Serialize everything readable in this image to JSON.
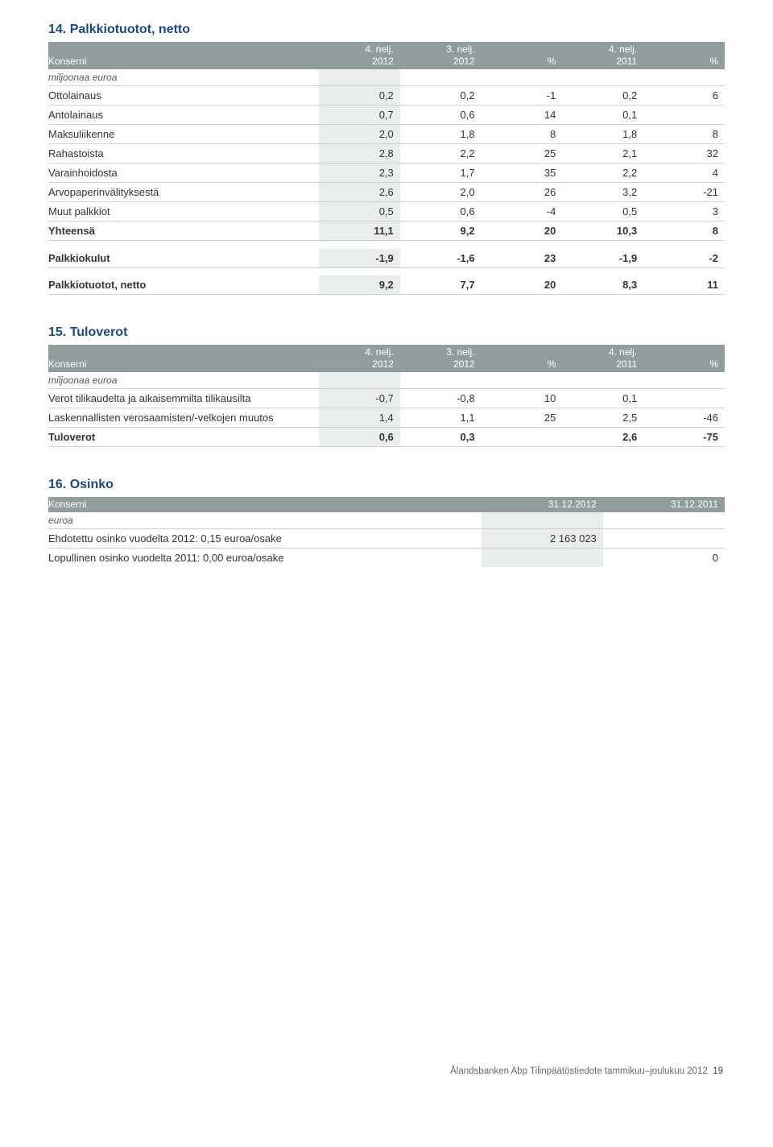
{
  "colors": {
    "heading": "#1d4a78",
    "header_row_bg": "#919d9d",
    "header_row_text": "#ffffff",
    "shade_bg": "#e9edec",
    "row_border": "#cfcfcf",
    "body_text": "#343434",
    "subhead_text": "#5a5a5a",
    "footer_text": "#6a6a6a"
  },
  "typography": {
    "body_fontsize_pt": 10,
    "heading_fontsize_pt": 12,
    "header_row_fontsize_pt": 9
  },
  "section14": {
    "title": "14. Palkkiotuotot, netto",
    "columns": {
      "c1": "Konserni",
      "c2a": "4. nelj.",
      "c2b": "2012",
      "c3a": "3. nelj.",
      "c3b": "2012",
      "c4": "%",
      "c5a": "4. nelj.",
      "c5b": "2011",
      "c6": "%"
    },
    "subheading": "miljoonaa euroa",
    "rows": [
      {
        "label": "Ottolainaus",
        "v": [
          "0,2",
          "0,2",
          "-1",
          "0,2",
          "6"
        ]
      },
      {
        "label": "Antolainaus",
        "v": [
          "0,7",
          "0,6",
          "14",
          "0,1",
          ""
        ]
      },
      {
        "label": "Maksuliikenne",
        "v": [
          "2,0",
          "1,8",
          "8",
          "1,8",
          "8"
        ]
      },
      {
        "label": "Rahastoista",
        "v": [
          "2,8",
          "2,2",
          "25",
          "2,1",
          "32"
        ]
      },
      {
        "label": "Varainhoidosta",
        "v": [
          "2,3",
          "1,7",
          "35",
          "2,2",
          "4"
        ]
      },
      {
        "label": "Arvopaperinvälityksestä",
        "v": [
          "2,6",
          "2,0",
          "26",
          "3,2",
          "-21"
        ]
      },
      {
        "label": "Muut palkkiot",
        "v": [
          "0,5",
          "0,6",
          "-4",
          "0,5",
          "3"
        ]
      }
    ],
    "subtotal": {
      "label": "Yhteensä",
      "v": [
        "11,1",
        "9,2",
        "20",
        "10,3",
        "8"
      ]
    },
    "expenses": {
      "label": "Palkkiokulut",
      "v": [
        "-1,9",
        "-1,6",
        "23",
        "-1,9",
        "-2"
      ]
    },
    "net": {
      "label": "Palkkiotuotot, netto",
      "v": [
        "9,2",
        "7,7",
        "20",
        "8,3",
        "11"
      ]
    }
  },
  "section15": {
    "title": "15. Tuloverot",
    "columns": {
      "c1": "Konserni",
      "c2a": "4. nelj.",
      "c2b": "2012",
      "c3a": "3. nelj.",
      "c3b": "2012",
      "c4": "%",
      "c5a": "4. nelj.",
      "c5b": "2011",
      "c6": "%"
    },
    "subheading": "miljoonaa euroa",
    "rows": [
      {
        "label": "Verot tilikaudelta ja aikaisemmilta tilikausilta",
        "v": [
          "-0,7",
          "-0,8",
          "10",
          "0,1",
          ""
        ]
      },
      {
        "label": "Laskennallisten verosaamisten/-velkojen muutos",
        "v": [
          "1,4",
          "1,1",
          "25",
          "2,5",
          "-46"
        ]
      }
    ],
    "total": {
      "label": "Tuloverot",
      "v": [
        "0,6",
        "0,3",
        "",
        "2,6",
        "-75"
      ]
    }
  },
  "section16": {
    "title": "16. Osinko",
    "columns": {
      "c1": "Konserni",
      "c2": "31.12.2012",
      "c3": "31.12.2011"
    },
    "subheading": "euroa",
    "rows": [
      {
        "label": "Ehdotettu osinko vuodelta 2012: 0,15 euroa/osake",
        "v": [
          "2 163 023",
          ""
        ]
      },
      {
        "label": "Lopullinen osinko vuodelta 2011: 0,00 euroa/osake",
        "v": [
          "",
          "0"
        ]
      }
    ]
  },
  "footer": {
    "text": "Ålandsbanken Abp  Tilinpäätöstiedote  tammikuu–joulukuu 2012",
    "page": "19"
  }
}
